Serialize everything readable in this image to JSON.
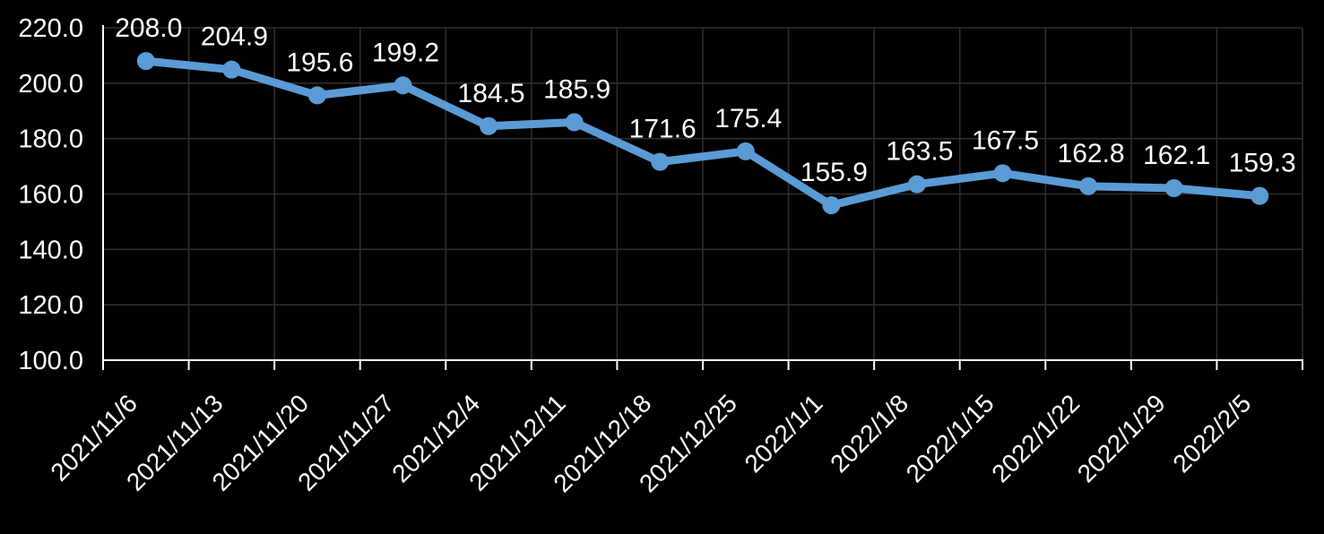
{
  "chart_data": {
    "type": "line",
    "title": "",
    "series_name": "",
    "categories": [
      "2021/11/6",
      "2021/11/13",
      "2021/11/20",
      "2021/11/27",
      "2021/12/4",
      "2021/12/11",
      "2021/12/18",
      "2021/12/25",
      "2022/1/1",
      "2022/1/8",
      "2022/1/15",
      "2022/1/22",
      "2022/1/29",
      "2022/2/5"
    ],
    "values": [
      208.0,
      204.9,
      195.6,
      199.2,
      184.5,
      185.9,
      171.6,
      175.4,
      155.9,
      163.5,
      167.5,
      162.8,
      162.1,
      159.3
    ],
    "data_labels": [
      "208.0",
      "204.9",
      "195.6",
      "199.2",
      "184.5",
      "185.9",
      "171.6",
      "175.4",
      "155.9",
      "163.5",
      "167.5",
      "162.8",
      "162.1",
      "159.3"
    ],
    "xlabel": "",
    "ylabel": "",
    "ylim": [
      100,
      220
    ],
    "y_tick_step": 20,
    "y_tick_labels": [
      "100.0",
      "120.0",
      "140.0",
      "160.0",
      "180.0",
      "200.0",
      "220.0"
    ],
    "x_label_rotation_deg": 45,
    "grid": "on",
    "legend": "none",
    "colors": {
      "series_line": "#5B9BD5",
      "marker_fill": "#5B9BD5",
      "background": "#000000",
      "gridline": "#2E2E2E",
      "axis_line": "#FFFFFF",
      "text": "#FFFFFF"
    }
  }
}
